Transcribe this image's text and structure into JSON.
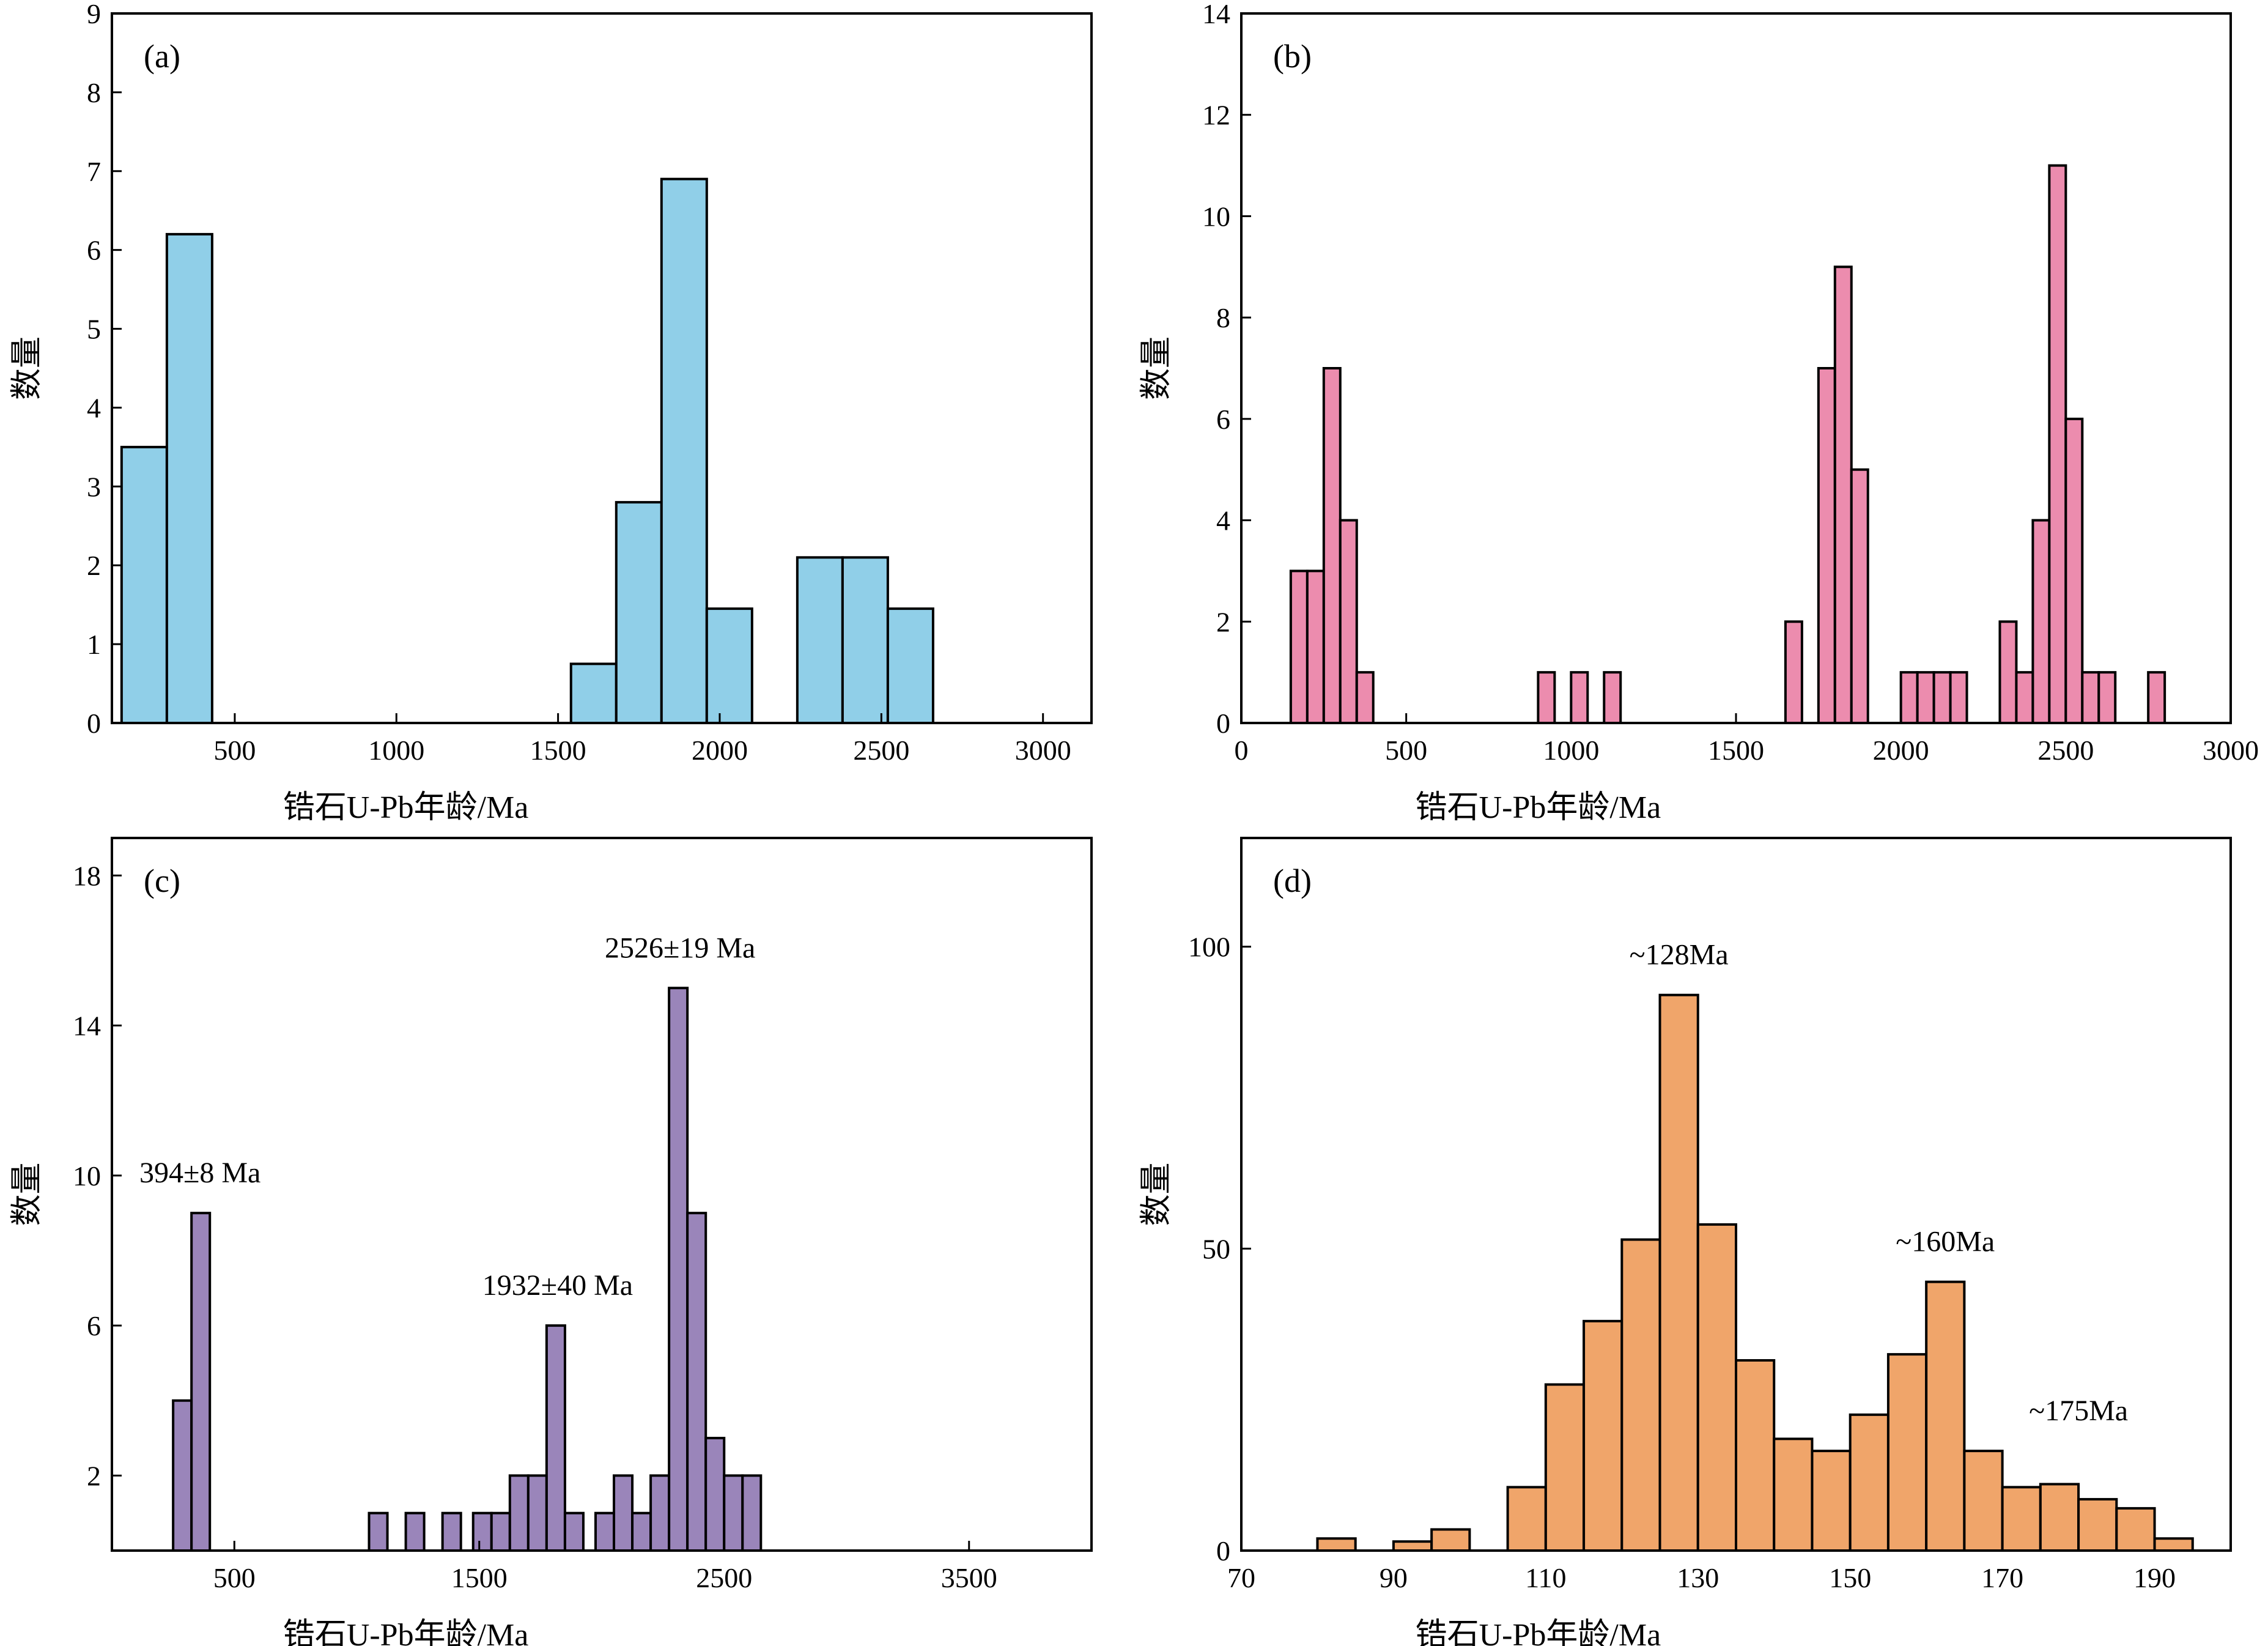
{
  "chart_data": [
    {
      "type": "bar",
      "panel_label": "(a)",
      "xlabel": "锆石U-Pb年龄/Ma",
      "ylabel": "数量",
      "xlim": [
        120,
        3150
      ],
      "ylim": [
        0,
        9
      ],
      "xticks": [
        500,
        1000,
        1500,
        2000,
        2500,
        3000
      ],
      "yticks": [
        0,
        1,
        2,
        3,
        4,
        5,
        6,
        7,
        8,
        9
      ],
      "bar_color": "#90cfe8",
      "bars": [
        {
          "x0": 150,
          "x1": 290,
          "value": 3.5
        },
        {
          "x0": 290,
          "x1": 430,
          "value": 6.2
        },
        {
          "x0": 1540,
          "x1": 1680,
          "value": 0.75
        },
        {
          "x0": 1680,
          "x1": 1820,
          "value": 2.8
        },
        {
          "x0": 1820,
          "x1": 1960,
          "value": 6.9
        },
        {
          "x0": 1960,
          "x1": 2100,
          "value": 1.45
        },
        {
          "x0": 2240,
          "x1": 2380,
          "value": 2.1
        },
        {
          "x0": 2380,
          "x1": 2520,
          "value": 2.1
        },
        {
          "x0": 2520,
          "x1": 2660,
          "value": 1.45
        }
      ],
      "annotations": []
    },
    {
      "type": "bar",
      "panel_label": "(b)",
      "xlabel": "锆石U-Pb年龄/Ma",
      "ylabel": "数量",
      "xlim": [
        0,
        3000
      ],
      "ylim": [
        0,
        14
      ],
      "xticks": [
        0,
        500,
        1000,
        1500,
        2000,
        2500,
        3000
      ],
      "yticks": [
        0,
        2,
        4,
        6,
        8,
        10,
        12,
        14
      ],
      "bar_color": "#ec8cae",
      "bars": [
        {
          "x0": 150,
          "x1": 200,
          "value": 3
        },
        {
          "x0": 200,
          "x1": 250,
          "value": 3
        },
        {
          "x0": 250,
          "x1": 300,
          "value": 7
        },
        {
          "x0": 300,
          "x1": 350,
          "value": 4
        },
        {
          "x0": 350,
          "x1": 400,
          "value": 1
        },
        {
          "x0": 900,
          "x1": 950,
          "value": 1
        },
        {
          "x0": 1000,
          "x1": 1050,
          "value": 1
        },
        {
          "x0": 1100,
          "x1": 1150,
          "value": 1
        },
        {
          "x0": 1650,
          "x1": 1700,
          "value": 2
        },
        {
          "x0": 1750,
          "x1": 1800,
          "value": 7
        },
        {
          "x0": 1800,
          "x1": 1850,
          "value": 9
        },
        {
          "x0": 1850,
          "x1": 1900,
          "value": 5
        },
        {
          "x0": 2000,
          "x1": 2050,
          "value": 1
        },
        {
          "x0": 2050,
          "x1": 2100,
          "value": 1
        },
        {
          "x0": 2100,
          "x1": 2150,
          "value": 1
        },
        {
          "x0": 2150,
          "x1": 2200,
          "value": 1
        },
        {
          "x0": 2300,
          "x1": 2350,
          "value": 2
        },
        {
          "x0": 2350,
          "x1": 2400,
          "value": 1
        },
        {
          "x0": 2400,
          "x1": 2450,
          "value": 4
        },
        {
          "x0": 2450,
          "x1": 2500,
          "value": 11
        },
        {
          "x0": 2500,
          "x1": 2550,
          "value": 6
        },
        {
          "x0": 2550,
          "x1": 2600,
          "value": 1
        },
        {
          "x0": 2600,
          "x1": 2650,
          "value": 1
        },
        {
          "x0": 2750,
          "x1": 2800,
          "value": 1
        }
      ],
      "annotations": []
    },
    {
      "type": "bar",
      "panel_label": "(c)",
      "xlabel": "锆石U-Pb年龄/Ma",
      "ylabel": "数量",
      "xlim": [
        0,
        4000
      ],
      "ylim": [
        0,
        19
      ],
      "xticks": [
        500,
        1500,
        2500,
        3500
      ],
      "yticks": [
        2,
        6,
        10,
        14,
        18
      ],
      "bar_color": "#9a85ba",
      "bars": [
        {
          "x0": 250,
          "x1": 325,
          "value": 4
        },
        {
          "x0": 325,
          "x1": 400,
          "value": 9
        },
        {
          "x0": 1050,
          "x1": 1125,
          "value": 1
        },
        {
          "x0": 1200,
          "x1": 1275,
          "value": 1
        },
        {
          "x0": 1350,
          "x1": 1425,
          "value": 1
        },
        {
          "x0": 1475,
          "x1": 1550,
          "value": 1
        },
        {
          "x0": 1550,
          "x1": 1625,
          "value": 1
        },
        {
          "x0": 1625,
          "x1": 1700,
          "value": 2
        },
        {
          "x0": 1700,
          "x1": 1775,
          "value": 2
        },
        {
          "x0": 1775,
          "x1": 1850,
          "value": 6
        },
        {
          "x0": 1850,
          "x1": 1925,
          "value": 1
        },
        {
          "x0": 1975,
          "x1": 2050,
          "value": 1
        },
        {
          "x0": 2050,
          "x1": 2125,
          "value": 2
        },
        {
          "x0": 2125,
          "x1": 2200,
          "value": 1
        },
        {
          "x0": 2200,
          "x1": 2275,
          "value": 2
        },
        {
          "x0": 2275,
          "x1": 2350,
          "value": 15
        },
        {
          "x0": 2350,
          "x1": 2425,
          "value": 9
        },
        {
          "x0": 2425,
          "x1": 2500,
          "value": 3
        },
        {
          "x0": 2500,
          "x1": 2575,
          "value": 2
        },
        {
          "x0": 2575,
          "x1": 2650,
          "value": 2
        }
      ],
      "annotations": [
        {
          "text": "394±8 Ma",
          "x": 360,
          "y": 9
        },
        {
          "text": "1932±40 Ma",
          "x": 1820,
          "y": 6
        },
        {
          "text": "2526±19 Ma",
          "x": 2320,
          "y": 15
        }
      ]
    },
    {
      "type": "bar",
      "panel_label": "(d)",
      "xlabel": "锆石U-Pb年龄/Ma",
      "ylabel": "数量",
      "xlim": [
        70,
        200
      ],
      "ylim": [
        0,
        118
      ],
      "xticks": [
        70,
        90,
        110,
        130,
        150,
        170,
        190
      ],
      "yticks": [
        0,
        50,
        100
      ],
      "bar_color": "#f0a56a",
      "bars": [
        {
          "x0": 80,
          "x1": 85,
          "value": 2
        },
        {
          "x0": 90,
          "x1": 95,
          "value": 1.5
        },
        {
          "x0": 95,
          "x1": 100,
          "value": 3.5
        },
        {
          "x0": 105,
          "x1": 110,
          "value": 10.5
        },
        {
          "x0": 110,
          "x1": 115,
          "value": 27.5
        },
        {
          "x0": 115,
          "x1": 120,
          "value": 38
        },
        {
          "x0": 120,
          "x1": 125,
          "value": 51.5
        },
        {
          "x0": 125,
          "x1": 130,
          "value": 92
        },
        {
          "x0": 130,
          "x1": 135,
          "value": 54
        },
        {
          "x0": 135,
          "x1": 140,
          "value": 31.5
        },
        {
          "x0": 140,
          "x1": 145,
          "value": 18.5
        },
        {
          "x0": 145,
          "x1": 150,
          "value": 16.5
        },
        {
          "x0": 150,
          "x1": 155,
          "value": 22.5
        },
        {
          "x0": 155,
          "x1": 160,
          "value": 32.5
        },
        {
          "x0": 160,
          "x1": 165,
          "value": 44.5
        },
        {
          "x0": 165,
          "x1": 170,
          "value": 16.5
        },
        {
          "x0": 170,
          "x1": 175,
          "value": 10.5
        },
        {
          "x0": 175,
          "x1": 180,
          "value": 11
        },
        {
          "x0": 180,
          "x1": 185,
          "value": 8.5
        },
        {
          "x0": 185,
          "x1": 190,
          "value": 7
        },
        {
          "x0": 190,
          "x1": 195,
          "value": 2
        }
      ],
      "annotations": [
        {
          "text": "~128Ma",
          "x": 127.5,
          "y": 92
        },
        {
          "text": "~160Ma",
          "x": 162.5,
          "y": 44.5
        },
        {
          "text": "~175Ma",
          "x": 180,
          "y": 16.5
        }
      ]
    }
  ]
}
